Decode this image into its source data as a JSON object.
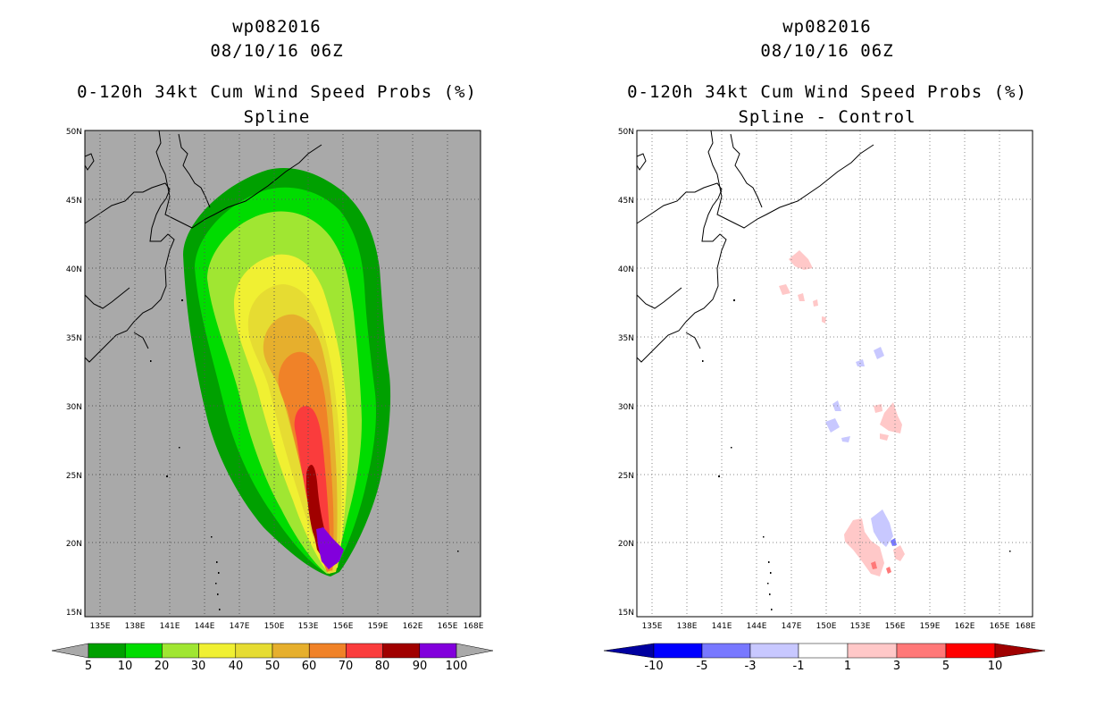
{
  "left_panel": {
    "title_line1": "wp082016",
    "title_line2": "08/10/16 06Z",
    "title_line3": "0-120h 34kt Cum Wind Speed Probs (%)",
    "title_line4": "Spline",
    "background_color": "#a9a9a9",
    "colorbar": {
      "labels": [
        "5",
        "10",
        "20",
        "30",
        "40",
        "50",
        "60",
        "70",
        "80",
        "90",
        "100"
      ],
      "colors": [
        "#00a000",
        "#00dc00",
        "#a0e632",
        "#f0f032",
        "#e6dc32",
        "#e6af2d",
        "#f08228",
        "#fa3c3c",
        "#a00000",
        "#8200dc"
      ]
    }
  },
  "right_panel": {
    "title_line1": "wp082016",
    "title_line2": "08/10/16 06Z",
    "title_line3": "0-120h 34kt Cum Wind Speed Probs (%)",
    "title_line4": "Spline - Control",
    "colorbar": {
      "labels": [
        "-10",
        "-5",
        "-3",
        "-1",
        "1",
        "3",
        "5",
        "10"
      ],
      "colors": [
        "#0000a0",
        "#0000ff",
        "#7878ff",
        "#c8c8ff",
        "#ffffff",
        "#ffc8c8",
        "#ff7878",
        "#ff0000",
        "#a00000"
      ]
    }
  },
  "axes": {
    "lat_labels": [
      "50N",
      "45N",
      "40N",
      "35N",
      "30N",
      "25N",
      "20N",
      "15N"
    ],
    "lon_labels": [
      "135E",
      "138E",
      "141E",
      "144E",
      "147E",
      "150E",
      "153E",
      "156E",
      "159E",
      "162E",
      "165E",
      "168E"
    ]
  }
}
